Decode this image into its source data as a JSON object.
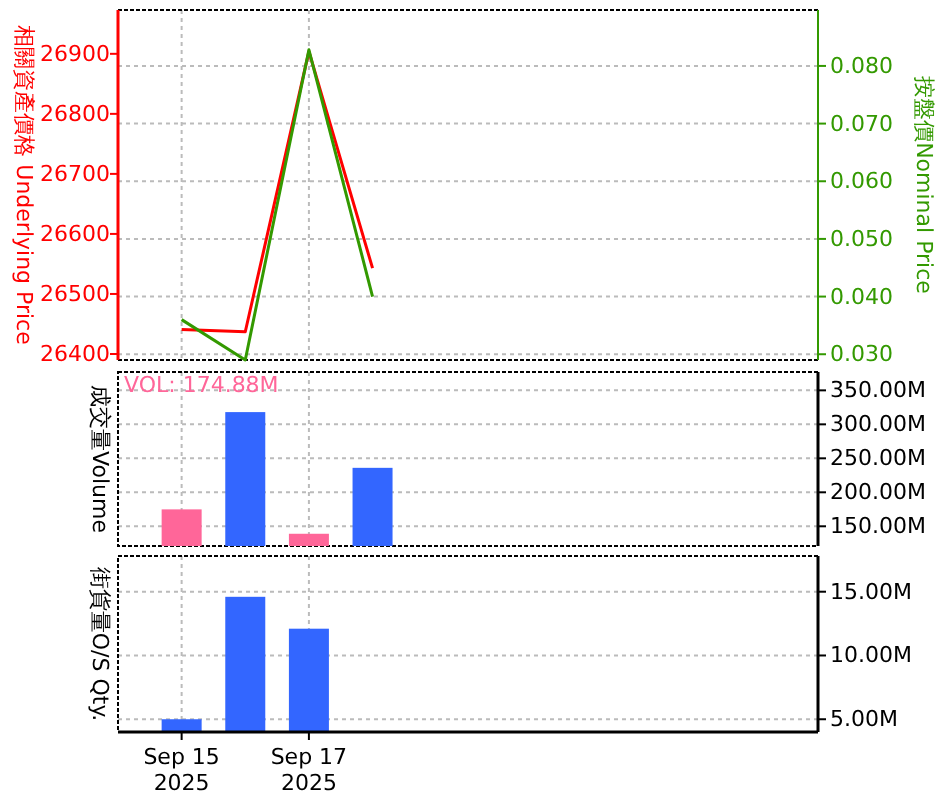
{
  "chart_data": [
    {
      "type": "line",
      "ylabel": "相關資產價格 Underlying Price",
      "y2label": "按盤價Nominal Price",
      "x": [
        "2025-09-15",
        "2025-09-16",
        "2025-09-17",
        "2025-09-18"
      ],
      "xlim": [
        "2025-09-14",
        "2025-09-25"
      ],
      "xticks": [
        {
          "value": "2025-09-15",
          "label": null
        },
        {
          "value": "2025-09-17",
          "label": null
        }
      ],
      "ylim": [
        26390,
        26973
      ],
      "yticks": [
        26400,
        26500,
        26600,
        26700,
        26800,
        26900
      ],
      "y2lim": [
        0.029,
        0.0897
      ],
      "y2ticks": [
        {
          "value": 0.03,
          "label": "0.030"
        },
        {
          "value": 0.04,
          "label": "0.040"
        },
        {
          "value": 0.05,
          "label": "0.050"
        },
        {
          "value": 0.06,
          "label": "0.060"
        },
        {
          "value": 0.07,
          "label": "0.070"
        },
        {
          "value": 0.08,
          "label": "0.080"
        }
      ],
      "grid": true,
      "tick_labels": "y",
      "series": [
        {
          "color": "#ff0000",
          "values": [
            26441,
            26437,
            26904,
            26543
          ]
        },
        {
          "color": "#339900",
          "axis": "y2",
          "values": [
            0.036,
            0.029,
            0.0828,
            0.04
          ]
        }
      ]
    },
    {
      "type": "bar",
      "ylabel": "成交量Volume",
      "x": [
        "2025-09-15",
        "2025-09-16",
        "2025-09-17",
        "2025-09-18"
      ],
      "xlim": [
        "2025-09-14",
        "2025-09-25"
      ],
      "xticks": [
        {
          "value": "2025-09-15",
          "label": null
        },
        {
          "value": "2025-09-17",
          "label": null
        }
      ],
      "ylim": [
        121,
        377
      ],
      "yticks": [
        {
          "value": 150,
          "label": "150.00M"
        },
        {
          "value": 200,
          "label": "200.00M"
        },
        {
          "value": 250,
          "label": "250.00M"
        },
        {
          "value": 300,
          "label": "300.00M"
        },
        {
          "value": 350,
          "label": "350.00M"
        }
      ],
      "grid": true,
      "tick_labels": "y",
      "values": [
        174.88,
        318,
        139,
        236
      ],
      "colors": [
        "#ff6699",
        "#3366ff",
        "#ff6699",
        "#3366ff"
      ],
      "annotations": [
        "VOL: 174.88M"
      ]
    },
    {
      "type": "bar",
      "ylabel": "街貨量O/S Qty.",
      "x": [
        "2025-09-15",
        "2025-09-16",
        "2025-09-17"
      ],
      "xlim": [
        "2025-09-14",
        "2025-09-25"
      ],
      "xticks": [
        {
          "value": "2025-09-15",
          "label": "Sep 15\n2025"
        },
        {
          "value": "2025-09-17",
          "label": "Sep 17\n2025"
        }
      ],
      "ylim": [
        4.0,
        17.8
      ],
      "yticks": [
        {
          "value": 5,
          "label": "5.00M"
        },
        {
          "value": 10,
          "label": "10.00M"
        },
        {
          "value": 15,
          "label": "15.00M"
        }
      ],
      "grid": true,
      "values": [
        5.0,
        14.6,
        12.1
      ],
      "colors": [
        "#3366ff",
        "#3366ff",
        "#3366ff"
      ]
    }
  ]
}
